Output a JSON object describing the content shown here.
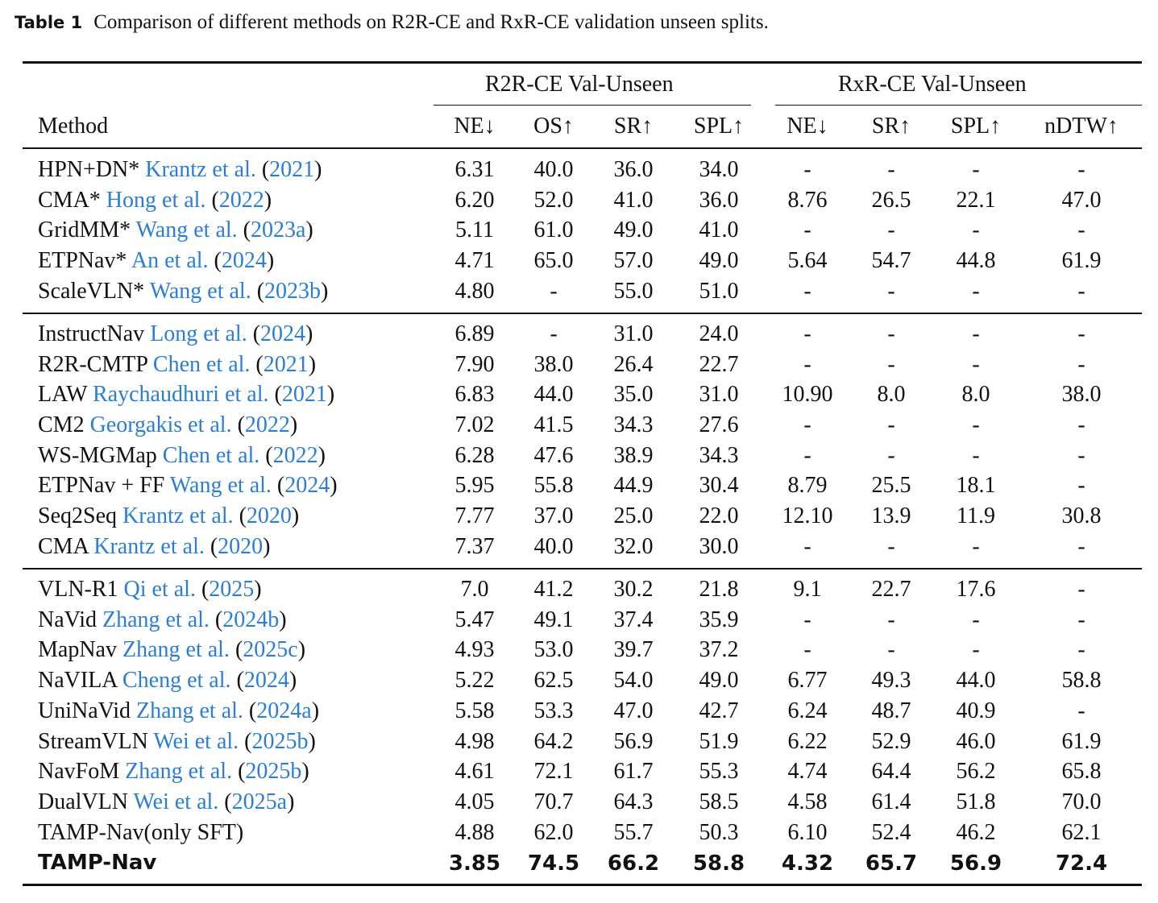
{
  "caption": {
    "label": "Table 1",
    "text": "Comparison of different methods on R2R-CE and RxR-CE validation unseen splits."
  },
  "header": {
    "group_r2r": "R2R-CE Val-Unseen",
    "group_rxr": "RxR-CE Val-Unseen",
    "method": "Method",
    "columns": [
      "NE↓",
      "OS↑",
      "SR↑",
      "SPL↑",
      "NE↓",
      "SR↑",
      "SPL↑",
      "nDTW↑"
    ]
  },
  "rows": [
    {
      "name": "HPN+DN*",
      "cite": "Krantz et al.",
      "year": "2021",
      "values": [
        "6.31",
        "40.0",
        "36.0",
        "34.0",
        "-",
        "-",
        "-",
        "-"
      ]
    },
    {
      "name": "CMA*",
      "cite": "Hong et al.",
      "year": "2022",
      "values": [
        "6.20",
        "52.0",
        "41.0",
        "36.0",
        "8.76",
        "26.5",
        "22.1",
        "47.0"
      ]
    },
    {
      "name": "GridMM*",
      "cite": "Wang et al.",
      "year": "2023a",
      "values": [
        "5.11",
        "61.0",
        "49.0",
        "41.0",
        "-",
        "-",
        "-",
        "-"
      ]
    },
    {
      "name": "ETPNav*",
      "cite": "An et al.",
      "year": "2024",
      "values": [
        "4.71",
        "65.0",
        "57.0",
        "49.0",
        "5.64",
        "54.7",
        "44.8",
        "61.9"
      ]
    },
    {
      "name": "ScaleVLN*",
      "cite": "Wang et al.",
      "year": "2023b",
      "values": [
        "4.80",
        "-",
        "55.0",
        "51.0",
        "-",
        "-",
        "-",
        "-"
      ]
    },
    {
      "name": "InstructNav",
      "cite": "Long et al.",
      "year": "2024",
      "values": [
        "6.89",
        "-",
        "31.0",
        "24.0",
        "-",
        "-",
        "-",
        "-"
      ]
    },
    {
      "name": "R2R-CMTP",
      "cite": "Chen et al.",
      "year": "2021",
      "values": [
        "7.90",
        "38.0",
        "26.4",
        "22.7",
        "-",
        "-",
        "-",
        "-"
      ]
    },
    {
      "name": "LAW",
      "cite": "Raychaudhuri et al.",
      "year": "2021",
      "values": [
        "6.83",
        "44.0",
        "35.0",
        "31.0",
        "10.90",
        "8.0",
        "8.0",
        "38.0"
      ]
    },
    {
      "name": "CM2",
      "cite": "Georgakis et al.",
      "year": "2022",
      "values": [
        "7.02",
        "41.5",
        "34.3",
        "27.6",
        "-",
        "-",
        "-",
        "-"
      ]
    },
    {
      "name": "WS-MGMap",
      "cite": "Chen et al.",
      "year": "2022",
      "values": [
        "6.28",
        "47.6",
        "38.9",
        "34.3",
        "-",
        "-",
        "-",
        "-"
      ]
    },
    {
      "name": "ETPNav + FF",
      "cite": "Wang et al.",
      "year": "2024",
      "values": [
        "5.95",
        "55.8",
        "44.9",
        "30.4",
        "8.79",
        "25.5",
        "18.1",
        "-"
      ]
    },
    {
      "name": "Seq2Seq",
      "cite": "Krantz et al.",
      "year": "2020",
      "values": [
        "7.77",
        "37.0",
        "25.0",
        "22.0",
        "12.10",
        "13.9",
        "11.9",
        "30.8"
      ]
    },
    {
      "name": "CMA",
      "cite": "Krantz et al.",
      "year": "2020",
      "values": [
        "7.37",
        "40.0",
        "32.0",
        "30.0",
        "-",
        "-",
        "-",
        "-"
      ]
    },
    {
      "name": "VLN-R1",
      "cite": "Qi et al.",
      "year": "2025",
      "values": [
        "7.0",
        "41.2",
        "30.2",
        "21.8",
        "9.1",
        "22.7",
        "17.6",
        "-"
      ]
    },
    {
      "name": "NaVid",
      "cite": "Zhang et al.",
      "year": "2024b",
      "values": [
        "5.47",
        "49.1",
        "37.4",
        "35.9",
        "-",
        "-",
        "-",
        "-"
      ]
    },
    {
      "name": "MapNav",
      "cite": "Zhang et al.",
      "year": "2025c",
      "values": [
        "4.93",
        "53.0",
        "39.7",
        "37.2",
        "-",
        "-",
        "-",
        "-"
      ]
    },
    {
      "name": "NaVILA",
      "cite": "Cheng et al.",
      "year": "2024",
      "values": [
        "5.22",
        "62.5",
        "54.0",
        "49.0",
        "6.77",
        "49.3",
        "44.0",
        "58.8"
      ]
    },
    {
      "name": "UniNaVid",
      "cite": "Zhang et al.",
      "year": "2024a",
      "values": [
        "5.58",
        "53.3",
        "47.0",
        "42.7",
        "6.24",
        "48.7",
        "40.9",
        "-"
      ]
    },
    {
      "name": "StreamVLN",
      "cite": "Wei et al.",
      "year": "2025b",
      "values": [
        "4.98",
        "64.2",
        "56.9",
        "51.9",
        "6.22",
        "52.9",
        "46.0",
        "61.9"
      ]
    },
    {
      "name": "NavFoM",
      "cite": "Zhang et al.",
      "year": "2025b",
      "values": [
        "4.61",
        "72.1",
        "61.7",
        "55.3",
        "4.74",
        "64.4",
        "56.2",
        "65.8"
      ]
    },
    {
      "name": "DualVLN",
      "cite": "Wei et al.",
      "year": "2025a",
      "values": [
        "4.05",
        "70.7",
        "64.3",
        "58.5",
        "4.58",
        "61.4",
        "51.8",
        "70.0"
      ]
    },
    {
      "name": "TAMP-Nav(only SFT)",
      "cite": "",
      "year": "",
      "values": [
        "4.88",
        "62.0",
        "55.7",
        "50.3",
        "6.10",
        "52.4",
        "46.2",
        "62.1"
      ]
    },
    {
      "name": "TAMP-Nav",
      "cite": "",
      "year": "",
      "bold": true,
      "values": [
        "3.85",
        "74.5",
        "66.2",
        "58.8",
        "4.32",
        "65.7",
        "56.9",
        "72.4"
      ]
    }
  ],
  "colors": {
    "citation": "#2a7ed6",
    "text": "#111111"
  }
}
